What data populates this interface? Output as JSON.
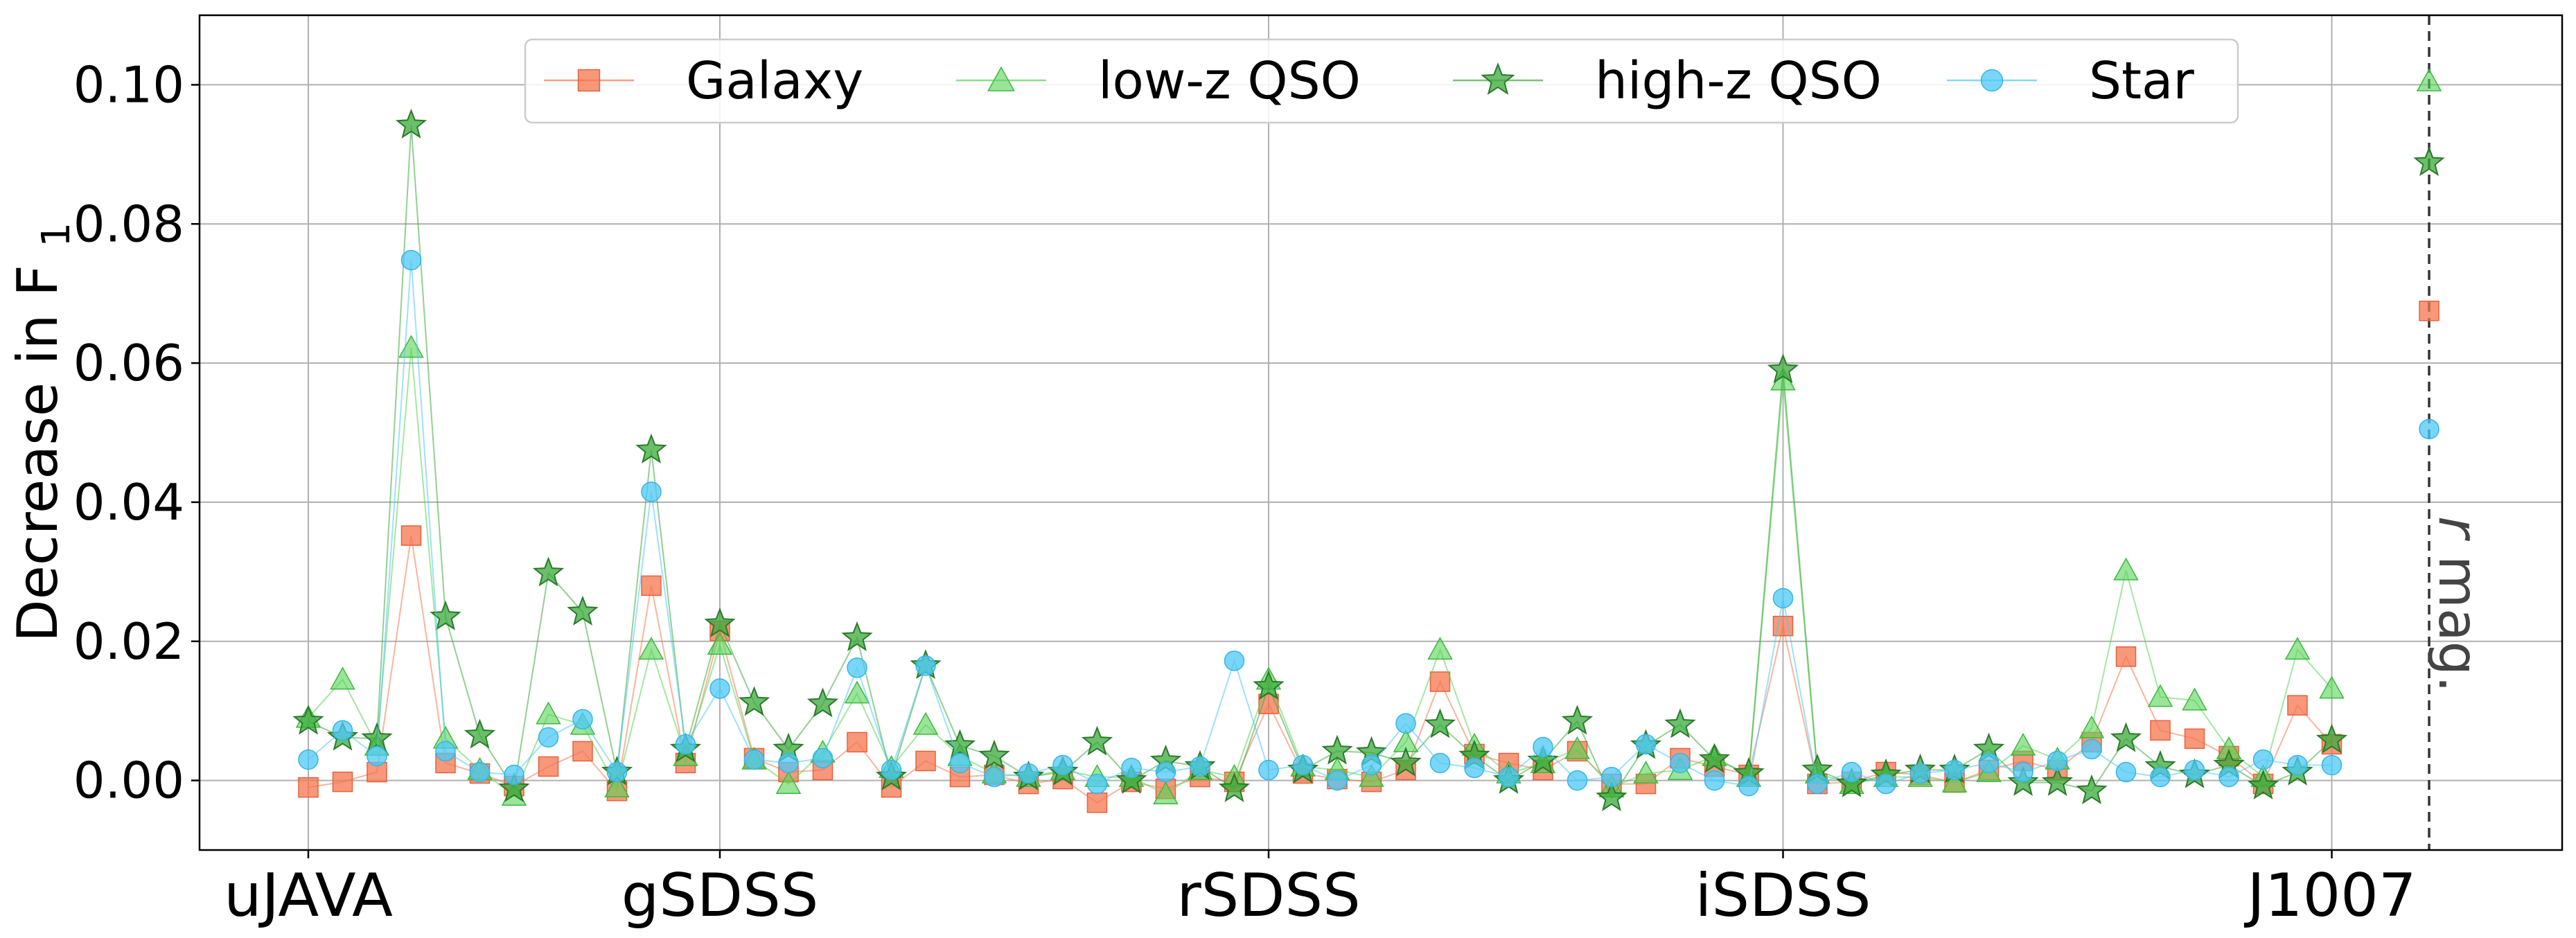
{
  "chart_data": {
    "type": "line",
    "title": "",
    "xlabel": "",
    "ylabel": "Decrease in F",
    "ylabel_subscript": "1",
    "ylim": [
      -0.01,
      0.11
    ],
    "xlim": [
      -3,
      65
    ],
    "grid": true,
    "legend_position": "top-center",
    "x_tick_labels": [
      {
        "x": 0,
        "label": "uJAVA"
      },
      {
        "x": 12,
        "label": "gSDSS"
      },
      {
        "x": 28,
        "label": "rSDSS"
      },
      {
        "x": 43,
        "label": "iSDSS"
      },
      {
        "x": 59,
        "label": "J1007"
      }
    ],
    "y_ticks": [
      0.0,
      0.02,
      0.04,
      0.06,
      0.08,
      0.1
    ],
    "y_tick_labels": [
      "0.00",
      "0.02",
      "0.04",
      "0.06",
      "0.08",
      "0.10"
    ],
    "x_range_note": "features indexed 0-59; separate point at x=62",
    "extra_feature": {
      "x": 62,
      "label": "r mag.",
      "values": {
        "Galaxy": 0.0675,
        "low-z QSO": 0.1005,
        "high-z QSO": 0.0888,
        "Star": 0.0505
      }
    },
    "series": [
      {
        "name": "Galaxy",
        "color": "#f4764f",
        "marker": "square",
        "values": [
          -0.001,
          -0.0002,
          0.0012,
          0.0352,
          0.0025,
          0.001,
          -0.0008,
          0.002,
          0.0042,
          -0.0015,
          0.028,
          0.0025,
          0.0215,
          0.0032,
          0.0012,
          0.0015,
          0.0055,
          -0.001,
          0.0028,
          0.0005,
          0.0008,
          -0.0005,
          0.0002,
          -0.0032,
          -0.0002,
          -0.0012,
          0.0005,
          -0.0002,
          0.011,
          0.001,
          0.0002,
          -0.0002,
          0.0015,
          0.0142,
          0.0038,
          0.0025,
          0.0015,
          0.0042,
          -0.0005,
          -0.0005,
          0.0032,
          0.002,
          0.0008,
          0.0222,
          -0.0005,
          -0.0002,
          0.0012,
          0.0008,
          -0.0003,
          0.0015,
          0.0028,
          0.0015,
          0.0055,
          0.0178,
          0.0072,
          0.006,
          0.0035,
          -0.0005,
          0.0108,
          0.0052
        ]
      },
      {
        "name": "low-z QSO",
        "color": "#57d357",
        "marker": "triangle",
        "values": [
          0.009,
          0.0145,
          0.005,
          0.0622,
          0.006,
          0.0015,
          -0.0022,
          0.0095,
          0.008,
          -0.001,
          0.0188,
          0.0035,
          0.0195,
          0.003,
          -0.0005,
          0.004,
          0.0125,
          0.0018,
          0.008,
          0.0035,
          0.001,
          0.0005,
          0.0015,
          0.0005,
          0.0005,
          -0.002,
          0.0015,
          0.0005,
          0.0145,
          0.002,
          0.0015,
          0.0005,
          0.0055,
          0.0188,
          0.005,
          0.001,
          0.0025,
          0.0045,
          -0.001,
          0.001,
          0.0015,
          0.0035,
          0.0005,
          0.0575,
          0.001,
          -0.0005,
          0.0005,
          0.0005,
          -0.0003,
          0.0012,
          0.005,
          0.003,
          0.0075,
          0.0302,
          0.012,
          0.0115,
          0.0045,
          0.0005,
          0.0188,
          0.0132
        ]
      },
      {
        "name": "high-z QSO",
        "color": "#3aaa3a",
        "marker": "star",
        "values": [
          0.0085,
          0.0062,
          0.006,
          0.0942,
          0.0235,
          0.0065,
          -0.0012,
          0.0298,
          0.0242,
          0.0012,
          0.0475,
          0.0045,
          0.0225,
          0.0112,
          0.0045,
          0.011,
          0.0205,
          0.0005,
          0.0165,
          0.005,
          0.0035,
          0.0005,
          0.0012,
          0.0055,
          0.0,
          0.0028,
          0.002,
          -0.0012,
          0.0135,
          0.0015,
          0.0042,
          0.004,
          0.0025,
          0.008,
          0.0035,
          0.0,
          0.0028,
          0.0085,
          -0.0025,
          0.005,
          0.008,
          0.003,
          0.001,
          0.059,
          0.0015,
          -0.0005,
          0.0008,
          0.0015,
          0.0015,
          0.0045,
          -0.0003,
          -0.0003,
          -0.0015,
          0.006,
          0.002,
          0.0008,
          0.0022,
          -0.0008,
          0.0012,
          0.0058
        ]
      },
      {
        "name": "Star",
        "color": "#4dc8f5",
        "marker": "circle",
        "values": [
          0.003,
          0.0072,
          0.0035,
          0.0748,
          0.0042,
          0.0012,
          0.0008,
          0.0062,
          0.0088,
          0.0012,
          0.0415,
          0.0052,
          0.0132,
          0.003,
          0.0025,
          0.0032,
          0.0162,
          0.0015,
          0.0165,
          0.0025,
          0.0005,
          0.001,
          0.0022,
          -0.0005,
          0.0018,
          0.0012,
          0.002,
          0.0172,
          0.0015,
          0.0022,
          0.0,
          0.0022,
          0.0082,
          0.0025,
          0.0018,
          0.0005,
          0.0048,
          0.0,
          0.0005,
          0.0052,
          0.0025,
          0.0,
          -0.0008,
          0.0262,
          -0.0005,
          0.0012,
          -0.0005,
          0.001,
          0.0015,
          0.0025,
          0.0012,
          0.0028,
          0.0045,
          0.0012,
          0.0005,
          0.0015,
          0.0005,
          0.003,
          0.0022,
          0.0022
        ]
      }
    ]
  }
}
